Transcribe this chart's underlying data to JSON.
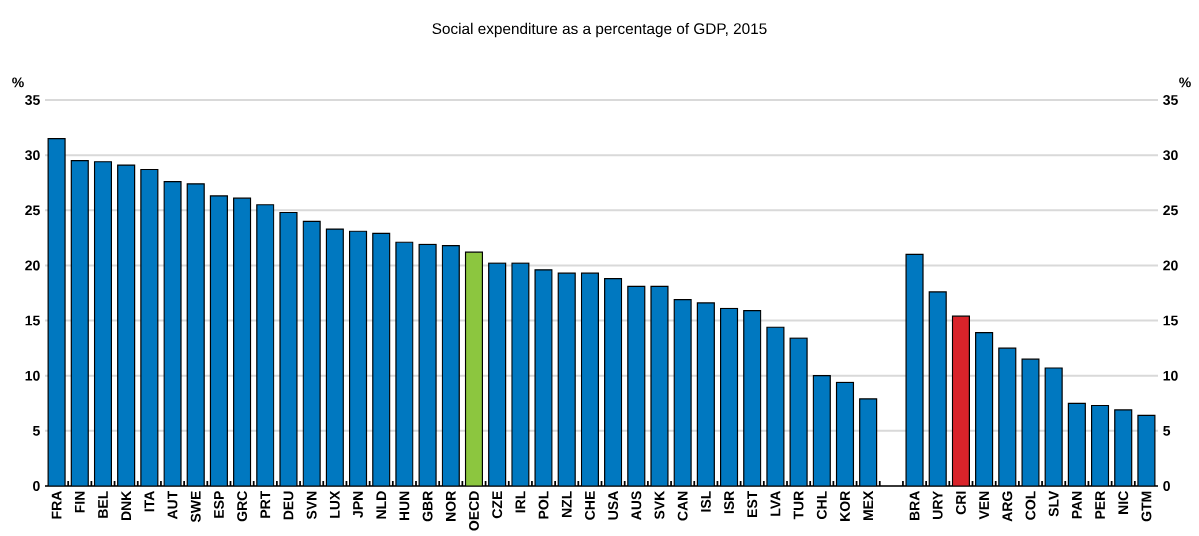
{
  "chart_data": {
    "type": "bar",
    "title": "Social expenditure as a percentage of GDP, 2015",
    "ylabel": "%",
    "y2label": "%",
    "categories": [
      "FRA",
      "FIN",
      "BEL",
      "DNK",
      "ITA",
      "AUT",
      "SWE",
      "ESP",
      "GRC",
      "PRT",
      "DEU",
      "SVN",
      "LUX",
      "JPN",
      "NLD",
      "HUN",
      "GBR",
      "NOR",
      "OECD",
      "CZE",
      "IRL",
      "POL",
      "NZL",
      "CHE",
      "USA",
      "AUS",
      "SVK",
      "CAN",
      "ISL",
      "ISR",
      "EST",
      "LVA",
      "TUR",
      "CHL",
      "KOR",
      "MEX",
      null,
      "BRA",
      "URY",
      "CRI",
      "VEN",
      "ARG",
      "COL",
      "SLV",
      "PAN",
      "PER",
      "NIC",
      "GTM"
    ],
    "values": [
      31.5,
      29.5,
      29.4,
      29.1,
      28.7,
      27.6,
      27.4,
      26.3,
      26.1,
      25.5,
      24.8,
      24.0,
      23.3,
      23.1,
      22.9,
      22.1,
      21.9,
      21.8,
      21.2,
      20.2,
      20.2,
      19.6,
      19.3,
      19.3,
      18.8,
      18.1,
      18.1,
      16.9,
      16.6,
      16.1,
      15.9,
      14.4,
      13.4,
      10.0,
      9.4,
      7.9,
      null,
      21.0,
      17.6,
      15.4,
      13.9,
      12.5,
      11.5,
      10.7,
      7.5,
      7.3,
      6.9,
      6.4
    ],
    "colors": [
      "#0078c0",
      "#0078c0",
      "#0078c0",
      "#0078c0",
      "#0078c0",
      "#0078c0",
      "#0078c0",
      "#0078c0",
      "#0078c0",
      "#0078c0",
      "#0078c0",
      "#0078c0",
      "#0078c0",
      "#0078c0",
      "#0078c0",
      "#0078c0",
      "#0078c0",
      "#0078c0",
      "#8cc63f",
      "#0078c0",
      "#0078c0",
      "#0078c0",
      "#0078c0",
      "#0078c0",
      "#0078c0",
      "#0078c0",
      "#0078c0",
      "#0078c0",
      "#0078c0",
      "#0078c0",
      "#0078c0",
      "#0078c0",
      "#0078c0",
      "#0078c0",
      "#0078c0",
      "#0078c0",
      null,
      "#0078c0",
      "#0078c0",
      "#d9232a",
      "#0078c0",
      "#0078c0",
      "#0078c0",
      "#0078c0",
      "#0078c0",
      "#0078c0",
      "#0078c0",
      "#0078c0"
    ],
    "ylim": [
      0,
      35
    ],
    "yticks": [
      0,
      5,
      10,
      15,
      20,
      25,
      30,
      35
    ],
    "y2lim": [
      0,
      35
    ],
    "y2ticks": [
      0,
      5,
      10,
      15,
      20,
      25,
      30,
      35
    ],
    "grid": "y"
  }
}
